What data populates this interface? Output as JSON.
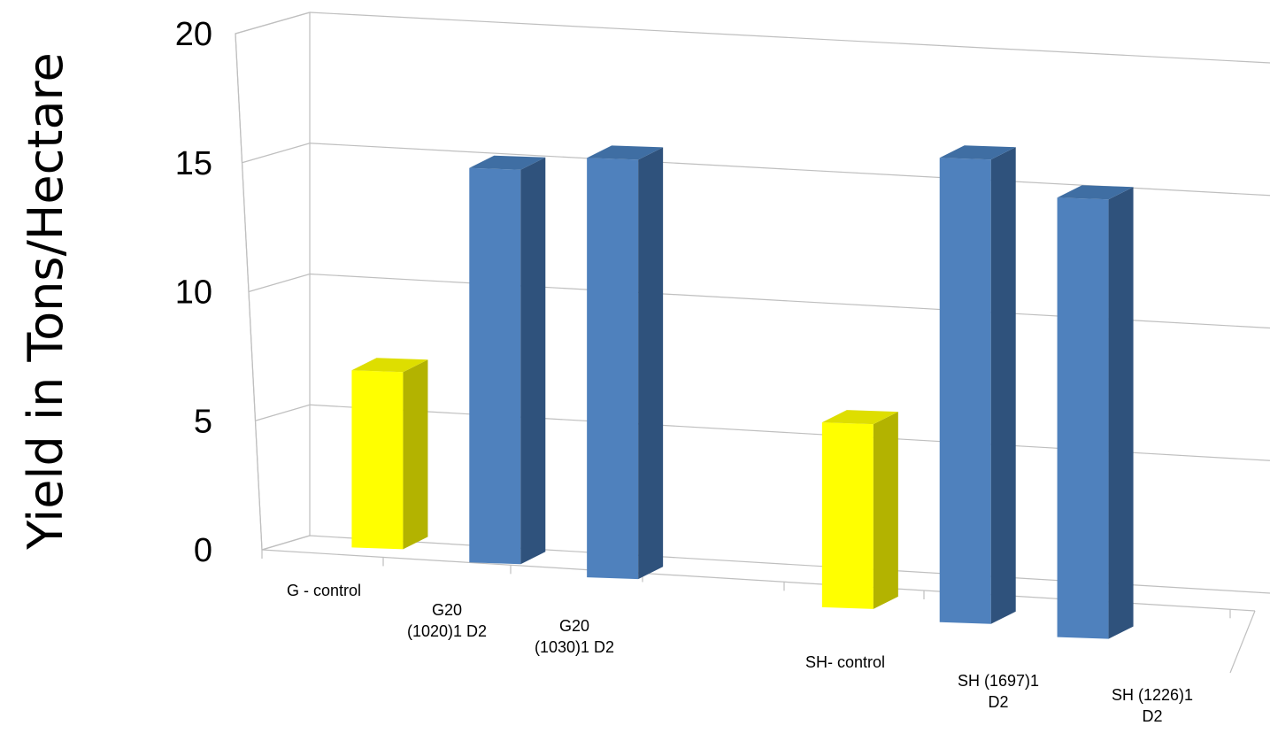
{
  "chart_data": {
    "type": "bar",
    "title": "",
    "xlabel": "",
    "ylabel": "Yield in Tons/Hectare",
    "ylim": [
      0,
      20
    ],
    "yticks": [
      "0",
      "5",
      "10",
      "15",
      "20"
    ],
    "grid": true,
    "legend": "none",
    "style": "3d-column",
    "categories": [
      [
        "G - control"
      ],
      [
        "G20",
        "(1020)1 D2"
      ],
      [
        "G20",
        "(1030)1 D2"
      ],
      [
        "SH- control"
      ],
      [
        "SH (1697)1",
        "D2"
      ],
      [
        "SH (1226)1",
        "D2"
      ]
    ],
    "values": [
      7.1,
      15.8,
      16.8,
      7.4,
      18.6,
      17.6
    ],
    "colors": {
      "control": "#ffff00",
      "treatment": "#4f81bd"
    },
    "bar_colors": [
      "control",
      "treatment",
      "treatment",
      "control",
      "treatment",
      "treatment"
    ]
  }
}
